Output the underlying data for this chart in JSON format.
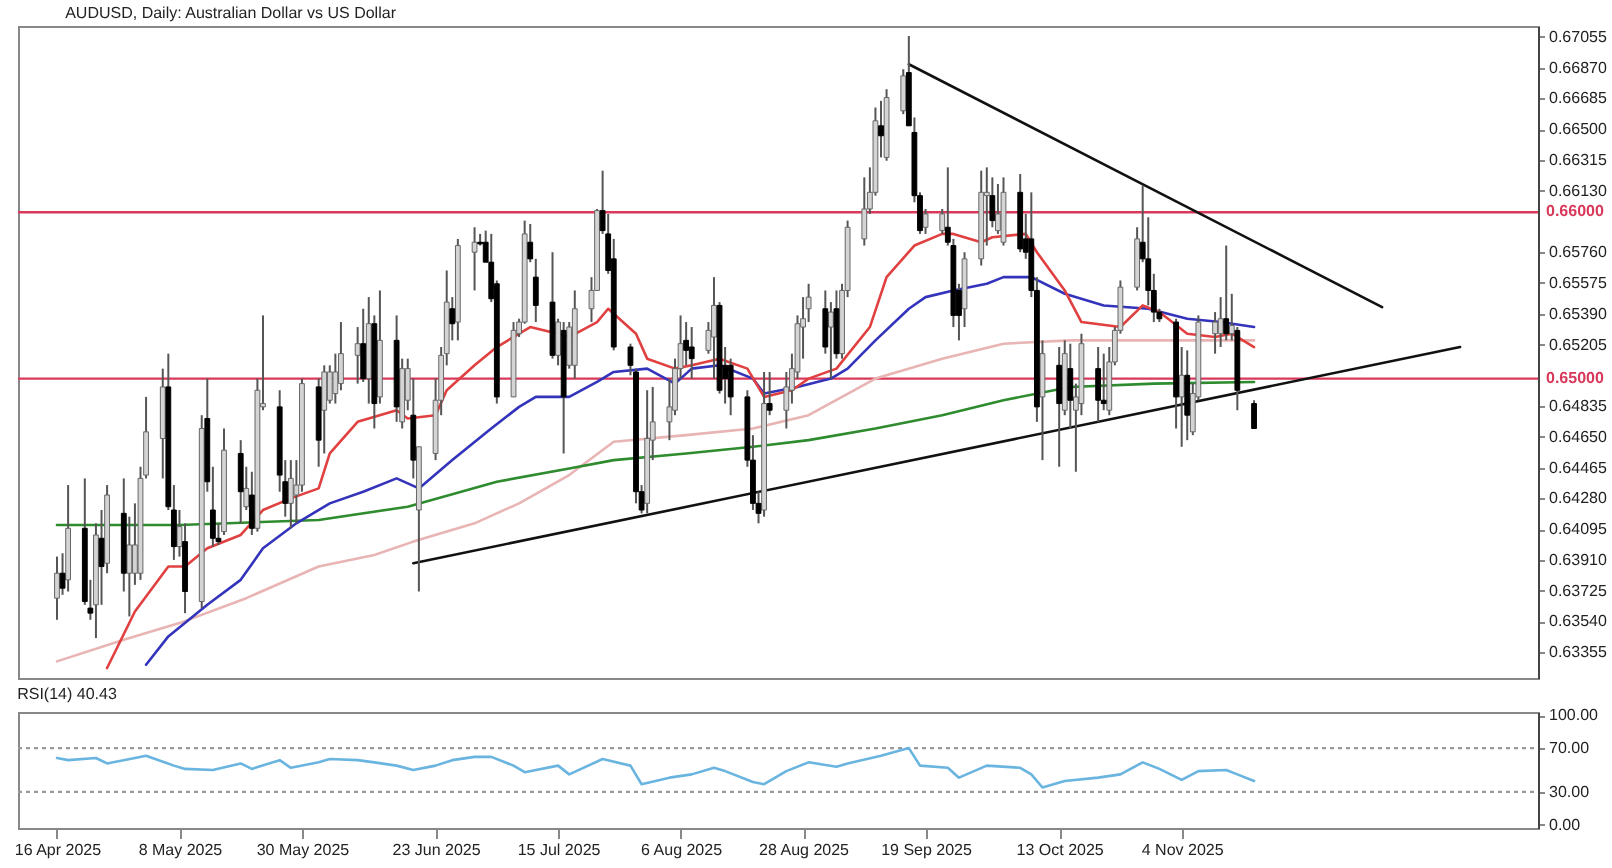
{
  "chart_data": [
    {
      "type": "candlestick",
      "title": "AUDUSD, Daily:  Australian Dollar vs US Dollar",
      "tick_labels": "y",
      "xlim": [
        "2025-04-09",
        "2026-01-07"
      ],
      "ylim": [
        0.632,
        0.6712
      ],
      "yticks": [
        {
          "value": 0.67055,
          "label": "0.67055"
        },
        {
          "value": 0.6687,
          "label": "0.66870"
        },
        {
          "value": 0.66685,
          "label": "0.66685"
        },
        {
          "value": 0.665,
          "label": "0.66500"
        },
        {
          "value": 0.66315,
          "label": "0.66315"
        },
        {
          "value": 0.6613,
          "label": "0.66130"
        },
        {
          "value": 0.6576,
          "label": "0.65760"
        },
        {
          "value": 0.65575,
          "label": "0.65575"
        },
        {
          "value": 0.6539,
          "label": "0.65390"
        },
        {
          "value": 0.65205,
          "label": "0.65205"
        },
        {
          "value": 0.64835,
          "label": "0.64835"
        },
        {
          "value": 0.6465,
          "label": "0.64650"
        },
        {
          "value": 0.64465,
          "label": "0.64465"
        },
        {
          "value": 0.6428,
          "label": "0.64280"
        },
        {
          "value": 0.64095,
          "label": "0.64095"
        },
        {
          "value": 0.6391,
          "label": "0.63910"
        },
        {
          "value": 0.63725,
          "label": "0.63725"
        },
        {
          "value": 0.6354,
          "label": "0.63540"
        },
        {
          "value": 0.63355,
          "label": "0.63355"
        }
      ],
      "ref_lines": [
        {
          "axis": "y",
          "value": 0.66,
          "label": "0.66000",
          "color": "#d8395a"
        },
        {
          "axis": "y",
          "value": 0.65,
          "label": "0.65000",
          "color": "#d8395a"
        }
      ],
      "x": [
        "2025-04-16",
        "2025-04-17",
        "2025-04-18",
        "2025-04-21",
        "2025-04-22",
        "2025-04-23",
        "2025-04-24",
        "2025-04-25",
        "2025-04-28",
        "2025-04-29",
        "2025-04-30",
        "2025-05-01",
        "2025-05-02",
        "2025-05-05",
        "2025-05-06",
        "2025-05-07",
        "2025-05-08",
        "2025-05-09",
        "2025-05-12",
        "2025-05-13",
        "2025-05-14",
        "2025-05-15",
        "2025-05-16",
        "2025-05-19",
        "2025-05-20",
        "2025-05-21",
        "2025-05-22",
        "2025-05-23",
        "2025-05-26",
        "2025-05-27",
        "2025-05-28",
        "2025-05-29",
        "2025-05-30",
        "2025-06-02",
        "2025-06-03",
        "2025-06-04",
        "2025-06-05",
        "2025-06-06",
        "2025-06-09",
        "2025-06-10",
        "2025-06-11",
        "2025-06-12",
        "2025-06-13",
        "2025-06-16",
        "2025-06-17",
        "2025-06-18",
        "2025-06-19",
        "2025-06-20",
        "2025-06-23",
        "2025-06-24",
        "2025-06-25",
        "2025-06-26",
        "2025-06-27",
        "2025-06-30",
        "2025-07-01",
        "2025-07-02",
        "2025-07-03",
        "2025-07-04",
        "2025-07-07",
        "2025-07-08",
        "2025-07-09",
        "2025-07-10",
        "2025-07-11",
        "2025-07-14",
        "2025-07-15",
        "2025-07-16",
        "2025-07-17",
        "2025-07-18",
        "2025-07-21",
        "2025-07-22",
        "2025-07-23",
        "2025-07-24",
        "2025-07-25",
        "2025-07-28",
        "2025-07-29",
        "2025-07-30",
        "2025-07-31",
        "2025-08-01",
        "2025-08-04",
        "2025-08-05",
        "2025-08-06",
        "2025-08-07",
        "2025-08-08",
        "2025-08-11",
        "2025-08-12",
        "2025-08-13",
        "2025-08-14",
        "2025-08-15",
        "2025-08-18",
        "2025-08-19",
        "2025-08-20",
        "2025-08-21",
        "2025-08-22",
        "2025-08-25",
        "2025-08-26",
        "2025-08-27",
        "2025-08-28",
        "2025-08-29",
        "2025-09-01",
        "2025-09-02",
        "2025-09-03",
        "2025-09-04",
        "2025-09-05",
        "2025-09-08",
        "2025-09-09",
        "2025-09-10",
        "2025-09-11",
        "2025-09-12",
        "2025-09-15",
        "2025-09-16",
        "2025-09-17",
        "2025-09-18",
        "2025-09-19",
        "2025-09-22",
        "2025-09-23",
        "2025-09-24",
        "2025-09-25",
        "2025-09-26",
        "2025-09-29",
        "2025-09-30",
        "2025-10-01",
        "2025-10-02",
        "2025-10-03",
        "2025-10-06",
        "2025-10-07",
        "2025-10-08",
        "2025-10-09",
        "2025-10-10",
        "2025-10-13",
        "2025-10-14",
        "2025-10-15",
        "2025-10-16",
        "2025-10-17",
        "2025-10-20",
        "2025-10-21",
        "2025-10-22",
        "2025-10-23",
        "2025-10-24",
        "2025-10-27",
        "2025-10-28",
        "2025-10-29",
        "2025-10-30",
        "2025-10-31",
        "2025-11-03",
        "2025-11-04",
        "2025-11-05",
        "2025-11-06",
        "2025-11-07",
        "2025-11-10",
        "2025-11-11",
        "2025-11-12",
        "2025-11-13",
        "2025-11-14",
        "2025-11-17"
      ],
      "ohlc": [
        [
          0.6368,
          0.6393,
          0.6355,
          0.6383
        ],
        [
          0.6383,
          0.6395,
          0.637,
          0.6374
        ],
        [
          0.6379,
          0.6436,
          0.6372,
          0.641
        ],
        [
          0.641,
          0.644,
          0.6364,
          0.6366
        ],
        [
          0.6362,
          0.6379,
          0.6355,
          0.6359
        ],
        [
          0.6364,
          0.6413,
          0.6344,
          0.6406
        ],
        [
          0.6404,
          0.6421,
          0.6364,
          0.6387
        ],
        [
          0.6389,
          0.6436,
          0.6383,
          0.643
        ],
        [
          0.6419,
          0.644,
          0.6372,
          0.6383
        ],
        [
          0.6383,
          0.6417,
          0.6357,
          0.64
        ],
        [
          0.6383,
          0.6425,
          0.6376,
          0.64
        ],
        [
          0.6383,
          0.6447,
          0.6379,
          0.644
        ],
        [
          0.6442,
          0.6489,
          0.644,
          0.6468
        ],
        [
          0.6464,
          0.6506,
          0.644,
          0.6495
        ],
        [
          0.6495,
          0.6515,
          0.6421,
          0.6423
        ],
        [
          0.6421,
          0.6436,
          0.6391,
          0.6399
        ],
        [
          0.6399,
          0.6421,
          0.6393,
          0.6411
        ],
        [
          0.6402,
          0.6413,
          0.6359,
          0.6372
        ],
        [
          0.6366,
          0.6478,
          0.6362,
          0.647
        ],
        [
          0.6476,
          0.65,
          0.6432,
          0.6438
        ],
        [
          0.6421,
          0.6447,
          0.6399,
          0.6404
        ],
        [
          0.6404,
          0.6413,
          0.64,
          0.6402
        ],
        [
          0.6408,
          0.647,
          0.6406,
          0.6457
        ],
        [
          0.6455,
          0.6463,
          0.6413,
          0.6432
        ],
        [
          0.6423,
          0.6447,
          0.6421,
          0.6434
        ],
        [
          0.643,
          0.6444,
          0.6406,
          0.641
        ],
        [
          0.641,
          0.65,
          0.6408,
          0.6493
        ],
        [
          0.6483,
          0.6538,
          0.6481,
          0.6485
        ],
        [
          0.6483,
          0.6493,
          0.6432,
          0.6442
        ],
        [
          0.6438,
          0.6451,
          0.6417,
          0.6425
        ],
        [
          0.6425,
          0.6451,
          0.641,
          0.644
        ],
        [
          0.643,
          0.6451,
          0.6413,
          0.6436
        ],
        [
          0.6436,
          0.65,
          0.6432,
          0.6497
        ],
        [
          0.6495,
          0.65,
          0.6447,
          0.6463
        ],
        [
          0.6481,
          0.6508,
          0.6455,
          0.6504
        ],
        [
          0.6487,
          0.6508,
          0.6485,
          0.6504
        ],
        [
          0.6491,
          0.6515,
          0.6485,
          0.6504
        ],
        [
          0.6497,
          0.6534,
          0.6493,
          0.6515
        ],
        [
          0.6514,
          0.6531,
          0.6497,
          0.6521
        ],
        [
          0.6521,
          0.6542,
          0.6498,
          0.65
        ],
        [
          0.65,
          0.6549,
          0.6485,
          0.6533
        ],
        [
          0.6533,
          0.6538,
          0.647,
          0.6485
        ],
        [
          0.6489,
          0.6553,
          0.6485,
          0.6523
        ],
        [
          0.6523,
          0.6538,
          0.6474,
          0.6483
        ],
        [
          0.6474,
          0.6512,
          0.647,
          0.6506
        ],
        [
          0.6487,
          0.6512,
          0.6481,
          0.6506
        ],
        [
          0.6478,
          0.65,
          0.644,
          0.6451
        ],
        [
          0.6421,
          0.6459,
          0.6372,
          0.6459
        ],
        [
          0.6455,
          0.65,
          0.6451,
          0.6487
        ],
        [
          0.6487,
          0.6519,
          0.6478,
          0.6514
        ],
        [
          0.6515,
          0.6565,
          0.6508,
          0.6546
        ],
        [
          0.6542,
          0.6549,
          0.6523,
          0.6533
        ],
        [
          0.6534,
          0.6584,
          0.6523,
          0.658
        ],
        [
          0.6576,
          0.6591,
          0.6553,
          0.6582
        ],
        [
          0.6582,
          0.6587,
          0.658,
          0.6581
        ],
        [
          0.6582,
          0.6589,
          0.657,
          0.657
        ],
        [
          0.657,
          0.6587,
          0.6546,
          0.6548
        ],
        [
          0.6557,
          0.6559,
          0.6485,
          0.6489
        ],
        [
          0.6489,
          0.6534,
          0.6489,
          0.6529
        ],
        [
          0.6527,
          0.6536,
          0.6525,
          0.6534
        ],
        [
          0.6534,
          0.6595,
          0.6533,
          0.6587
        ],
        [
          0.6582,
          0.6593,
          0.657,
          0.6572
        ],
        [
          0.6561,
          0.6572,
          0.6534,
          0.6544
        ],
        [
          0.6546,
          0.6576,
          0.6512,
          0.6514
        ],
        [
          0.6514,
          0.6536,
          0.6508,
          0.6534
        ],
        [
          0.6529,
          0.6534,
          0.6455,
          0.6489
        ],
        [
          0.6508,
          0.6534,
          0.6506,
          0.6531
        ],
        [
          0.6508,
          0.6553,
          0.65,
          0.6542
        ],
        [
          0.6542,
          0.6561,
          0.6534,
          0.6553
        ],
        [
          0.6553,
          0.6602,
          0.6553,
          0.6601
        ],
        [
          0.6601,
          0.6625,
          0.6587,
          0.6589
        ],
        [
          0.6587,
          0.6599,
          0.6563,
          0.6565
        ],
        [
          0.6572,
          0.6584,
          0.6517,
          0.6519
        ],
        [
          0.6519,
          0.6521,
          0.6502,
          0.6508
        ],
        [
          0.6504,
          0.6506,
          0.6425,
          0.6432
        ],
        [
          0.6432,
          0.6436,
          0.6419,
          0.6421
        ],
        [
          0.6425,
          0.6493,
          0.6419,
          0.6464
        ],
        [
          0.6463,
          0.6495,
          0.6451,
          0.6474
        ],
        [
          0.6474,
          0.65,
          0.6463,
          0.6483
        ],
        [
          0.6481,
          0.6512,
          0.6478,
          0.6506
        ],
        [
          0.6506,
          0.6538,
          0.65,
          0.6521
        ],
        [
          0.6523,
          0.6534,
          0.6508,
          0.6517
        ],
        [
          0.6519,
          0.6531,
          0.65,
          0.6512
        ],
        [
          0.6517,
          0.6534,
          0.6515,
          0.6529
        ],
        [
          0.6525,
          0.6561,
          0.65,
          0.6544
        ],
        [
          0.6544,
          0.6546,
          0.6491,
          0.6493
        ],
        [
          0.6508,
          0.6519,
          0.6485,
          0.65
        ],
        [
          0.6508,
          0.6512,
          0.6478,
          0.6489
        ],
        [
          0.6489,
          0.6493,
          0.6447,
          0.6451
        ],
        [
          0.6451,
          0.6466,
          0.6421,
          0.6425
        ],
        [
          0.6425,
          0.6432,
          0.6413,
          0.6419
        ],
        [
          0.6421,
          0.6504,
          0.6417,
          0.6485
        ],
        [
          0.6485,
          0.6504,
          0.6478,
          0.6481
        ],
        [
          0.6481,
          0.6504,
          0.647,
          0.6495
        ],
        [
          0.6493,
          0.6515,
          0.6485,
          0.6506
        ],
        [
          0.6504,
          0.6538,
          0.65,
          0.6533
        ],
        [
          0.6531,
          0.6549,
          0.6512,
          0.6536
        ],
        [
          0.6542,
          0.6557,
          0.6534,
          0.6549
        ],
        [
          0.6542,
          0.6553,
          0.6515,
          0.6519
        ],
        [
          0.6531,
          0.6546,
          0.65,
          0.654
        ],
        [
          0.6542,
          0.6553,
          0.6512,
          0.6515
        ],
        [
          0.6515,
          0.6557,
          0.6512,
          0.6553
        ],
        [
          0.6553,
          0.6595,
          0.6549,
          0.6591
        ],
        [
          0.6584,
          0.6621,
          0.658,
          0.6602
        ],
        [
          0.6602,
          0.6627,
          0.6599,
          0.6612
        ],
        [
          0.6612,
          0.6663,
          0.661,
          0.6655
        ],
        [
          0.6652,
          0.6667,
          0.6633,
          0.6646
        ],
        [
          0.6633,
          0.6674,
          0.6631,
          0.6669
        ],
        [
          0.6661,
          0.6686,
          0.6659,
          0.6682
        ],
        [
          0.6684,
          0.6706,
          0.6652,
          0.6652
        ],
        [
          0.6648,
          0.6657,
          0.6606,
          0.661
        ],
        [
          0.661,
          0.6612,
          0.6587,
          0.6589
        ],
        [
          0.6591,
          0.6602,
          0.6587,
          0.6599
        ],
        [
          0.6589,
          0.6602,
          0.6587,
          0.6599
        ],
        [
          0.6591,
          0.6627,
          0.658,
          0.6582
        ],
        [
          0.658,
          0.6584,
          0.6531,
          0.6538
        ],
        [
          0.6553,
          0.6557,
          0.6523,
          0.6538
        ],
        [
          0.6542,
          0.6576,
          0.6531,
          0.6572
        ],
        [
          0.6572,
          0.6625,
          0.6568,
          0.6612
        ],
        [
          0.661,
          0.6627,
          0.658,
          0.6612
        ],
        [
          0.661,
          0.6621,
          0.6591,
          0.6595
        ],
        [
          0.6589,
          0.6617,
          0.6587,
          0.6599
        ],
        [
          0.6582,
          0.6621,
          0.658,
          0.6612
        ],
        [
          0.6612,
          0.6623,
          0.6576,
          0.6578
        ],
        [
          0.6584,
          0.6599,
          0.6572,
          0.6576
        ],
        [
          0.6584,
          0.6612,
          0.6549,
          0.6553
        ],
        [
          0.6553,
          0.6561,
          0.6474,
          0.6483
        ],
        [
          0.6489,
          0.6523,
          0.6451,
          0.6515
        ],
        [
          0.6508,
          0.6519,
          0.6447,
          0.6485
        ],
        [
          0.6481,
          0.6523,
          0.6478,
          0.6515
        ],
        [
          0.6506,
          0.6521,
          0.647,
          0.6487
        ],
        [
          0.6481,
          0.6497,
          0.6444,
          0.6489
        ],
        [
          0.6485,
          0.6527,
          0.6478,
          0.6521
        ],
        [
          0.6506,
          0.6519,
          0.6474,
          0.6487
        ],
        [
          0.6487,
          0.6515,
          0.6481,
          0.6485
        ],
        [
          0.6481,
          0.6519,
          0.6478,
          0.651
        ],
        [
          0.651,
          0.6531,
          0.6508,
          0.6529
        ],
        [
          0.6529,
          0.6559,
          0.6527,
          0.6555
        ],
        [
          0.6555,
          0.6591,
          0.6553,
          0.6584
        ],
        [
          0.6582,
          0.6616,
          0.657,
          0.6572
        ],
        [
          0.6572,
          0.6597,
          0.6544,
          0.6553
        ],
        [
          0.6553,
          0.6563,
          0.6534,
          0.654
        ],
        [
          0.654,
          0.6542,
          0.6534,
          0.6536
        ],
        [
          0.6534,
          0.6536,
          0.647,
          0.6489
        ],
        [
          0.6489,
          0.6519,
          0.6459,
          0.6502
        ],
        [
          0.6502,
          0.6517,
          0.6463,
          0.6478
        ],
        [
          0.6468,
          0.6497,
          0.6466,
          0.6491
        ],
        [
          0.6489,
          0.6538,
          0.6487,
          0.6534
        ],
        [
          0.6527,
          0.654,
          0.6515,
          0.6534
        ],
        [
          0.6527,
          0.6549,
          0.6519,
          0.6536
        ],
        [
          0.6536,
          0.658,
          0.6523,
          0.6527
        ],
        [
          0.6527,
          0.6551,
          0.6523,
          0.6532
        ],
        [
          0.6529,
          0.6531,
          0.6481,
          0.6493
        ],
        [
          0.6485,
          0.6487,
          0.647,
          0.647
        ]
      ],
      "series": [
        {
          "type": "line",
          "color": "#e8b4b4",
          "x": [
            "2025-04-16",
            "2025-04-28",
            "2025-05-08",
            "2025-05-20",
            "2025-06-02",
            "2025-06-12",
            "2025-06-19",
            "2025-06-30",
            "2025-07-08",
            "2025-07-17",
            "2025-07-25",
            "2025-08-07",
            "2025-08-19",
            "2025-08-29",
            "2025-09-10",
            "2025-09-22",
            "2025-10-03",
            "2025-10-15",
            "2025-10-30",
            "2025-11-17"
          ],
          "values": [
            0.633,
            0.6343,
            0.6353,
            0.6368,
            0.6387,
            0.6394,
            0.6402,
            0.6413,
            0.6425,
            0.6442,
            0.6462,
            0.6466,
            0.647,
            0.6478,
            0.65,
            0.6512,
            0.6521,
            0.6523,
            0.6523,
            0.6523
          ]
        },
        {
          "type": "line",
          "color": "#2e8b2e",
          "x": [
            "2025-04-16",
            "2025-05-08",
            "2025-06-02",
            "2025-06-18",
            "2025-07-04",
            "2025-07-17",
            "2025-07-25",
            "2025-08-07",
            "2025-08-19",
            "2025-08-29",
            "2025-09-10",
            "2025-09-22",
            "2025-10-03",
            "2025-10-15",
            "2025-10-30",
            "2025-11-17"
          ],
          "values": [
            0.6412,
            0.6412,
            0.6415,
            0.6423,
            0.6438,
            0.6446,
            0.6451,
            0.6455,
            0.6459,
            0.6463,
            0.647,
            0.6478,
            0.6487,
            0.6495,
            0.6497,
            0.6498
          ]
        },
        {
          "type": "line",
          "color": "#3333bb",
          "x": [
            "2025-05-02",
            "2025-05-06",
            "2025-05-13",
            "2025-05-19",
            "2025-05-23",
            "2025-05-29",
            "2025-06-04",
            "2025-06-10",
            "2025-06-16",
            "2025-06-20",
            "2025-06-26",
            "2025-07-03",
            "2025-07-08",
            "2025-07-11",
            "2025-07-17",
            "2025-07-22",
            "2025-07-25",
            "2025-07-31",
            "2025-08-05",
            "2025-08-08",
            "2025-08-13",
            "2025-08-19",
            "2025-08-21",
            "2025-08-27",
            "2025-09-02",
            "2025-09-05",
            "2025-09-10",
            "2025-09-16",
            "2025-09-19",
            "2025-09-24",
            "2025-09-30",
            "2025-10-03",
            "2025-10-08",
            "2025-10-14",
            "2025-10-21",
            "2025-10-29",
            "2025-11-05",
            "2025-11-11",
            "2025-11-17"
          ],
          "values": [
            0.6328,
            0.6345,
            0.6364,
            0.6379,
            0.6398,
            0.6413,
            0.6425,
            0.6432,
            0.644,
            0.6434,
            0.6451,
            0.647,
            0.6483,
            0.6489,
            0.6489,
            0.6498,
            0.6504,
            0.6506,
            0.6497,
            0.6506,
            0.6508,
            0.65,
            0.6491,
            0.6495,
            0.65,
            0.6506,
            0.6523,
            0.6542,
            0.6549,
            0.6553,
            0.6557,
            0.6561,
            0.6561,
            0.6551,
            0.6544,
            0.6542,
            0.6536,
            0.6534,
            0.6531
          ]
        },
        {
          "type": "line",
          "color": "#e04040",
          "x": [
            "2025-04-25",
            "2025-04-30",
            "2025-05-06",
            "2025-05-09",
            "2025-05-13",
            "2025-05-19",
            "2025-05-23",
            "2025-05-28",
            "2025-06-02",
            "2025-06-04",
            "2025-06-09",
            "2025-06-16",
            "2025-06-18",
            "2025-06-23",
            "2025-06-25",
            "2025-06-30",
            "2025-07-04",
            "2025-07-10",
            "2025-07-15",
            "2025-07-17",
            "2025-07-22",
            "2025-07-24",
            "2025-07-29",
            "2025-07-31",
            "2025-08-05",
            "2025-08-08",
            "2025-08-13",
            "2025-08-18",
            "2025-08-21",
            "2025-08-26",
            "2025-08-29",
            "2025-09-03",
            "2025-09-09",
            "2025-09-12",
            "2025-09-17",
            "2025-09-22",
            "2025-09-24",
            "2025-09-29",
            "2025-10-01",
            "2025-10-07",
            "2025-10-09",
            "2025-10-14",
            "2025-10-17",
            "2025-10-24",
            "2025-10-28",
            "2025-10-31",
            "2025-11-05",
            "2025-11-10",
            "2025-11-13",
            "2025-11-17"
          ],
          "values": [
            0.6326,
            0.636,
            0.6387,
            0.6387,
            0.6398,
            0.6406,
            0.6421,
            0.6428,
            0.6434,
            0.6455,
            0.6474,
            0.6481,
            0.6476,
            0.6478,
            0.6493,
            0.6508,
            0.6519,
            0.6531,
            0.6527,
            0.6525,
            0.6534,
            0.6542,
            0.6527,
            0.6512,
            0.6506,
            0.6508,
            0.6512,
            0.6506,
            0.6489,
            0.6493,
            0.65,
            0.6506,
            0.6531,
            0.6561,
            0.658,
            0.6587,
            0.6587,
            0.6582,
            0.6585,
            0.6587,
            0.6576,
            0.6553,
            0.6534,
            0.6531,
            0.6544,
            0.654,
            0.6527,
            0.6525,
            0.6527,
            0.6519
          ]
        },
        {
          "type": "line",
          "color": "#111111",
          "x": [
            "2025-09-16",
            "2025-12-10"
          ],
          "values": [
            0.6689,
            0.6543
          ]
        },
        {
          "type": "line",
          "color": "#111111",
          "x": [
            "2025-06-19",
            "2025-12-24"
          ],
          "values": [
            0.6389,
            0.6519
          ]
        }
      ]
    },
    {
      "type": "line",
      "title": "RSI(14) 40.43",
      "xlim": [
        "2025-04-09",
        "2026-01-07"
      ],
      "xticks": [
        {
          "value": "2025-04-16",
          "label": "16 Apr 2025"
        },
        {
          "value": "2025-05-08",
          "label": "8 May 2025"
        },
        {
          "value": "2025-05-30",
          "label": "30 May 2025"
        },
        {
          "value": "2025-06-23",
          "label": "23 Jun 2025"
        },
        {
          "value": "2025-07-15",
          "label": "15 Jul 2025"
        },
        {
          "value": "2025-08-06",
          "label": "6 Aug 2025"
        },
        {
          "value": "2025-08-28",
          "label": "28 Aug 2025"
        },
        {
          "value": "2025-09-19",
          "label": "19 Sep 2025"
        },
        {
          "value": "2025-10-13",
          "label": "13 Oct 2025"
        },
        {
          "value": "2025-11-04",
          "label": "4 Nov 2025"
        }
      ],
      "ylim": [
        -3,
        103
      ],
      "yticks": [
        {
          "value": 0,
          "label": "0.00"
        },
        {
          "value": 30,
          "label": "30.00"
        },
        {
          "value": 70,
          "label": "70.00"
        },
        {
          "value": 100,
          "label": "100.00"
        }
      ],
      "ref_lines": [
        {
          "axis": "y",
          "value": 30,
          "color": "#999999",
          "line_style": "dotted"
        },
        {
          "axis": "y",
          "value": 70,
          "color": "#999999",
          "line_style": "dotted"
        }
      ],
      "series": [
        {
          "color": "#6ab4e0",
          "x": [
            "2025-04-16",
            "2025-04-18",
            "2025-04-23",
            "2025-04-25",
            "2025-04-30",
            "2025-05-02",
            "2025-05-07",
            "2025-05-09",
            "2025-05-14",
            "2025-05-19",
            "2025-05-21",
            "2025-05-26",
            "2025-05-28",
            "2025-06-02",
            "2025-06-04",
            "2025-06-09",
            "2025-06-12",
            "2025-06-16",
            "2025-06-19",
            "2025-06-23",
            "2025-06-26",
            "2025-06-30",
            "2025-07-03",
            "2025-07-07",
            "2025-07-09",
            "2025-07-15",
            "2025-07-17",
            "2025-07-23",
            "2025-07-28",
            "2025-07-30",
            "2025-08-04",
            "2025-08-08",
            "2025-08-12",
            "2025-08-14",
            "2025-08-19",
            "2025-08-21",
            "2025-08-25",
            "2025-08-29",
            "2025-09-03",
            "2025-09-05",
            "2025-09-11",
            "2025-09-16",
            "2025-09-18",
            "2025-09-23",
            "2025-09-25",
            "2025-09-30",
            "2025-10-06",
            "2025-10-08",
            "2025-10-10",
            "2025-10-14",
            "2025-10-20",
            "2025-10-24",
            "2025-10-28",
            "2025-10-31",
            "2025-11-04",
            "2025-11-07",
            "2025-11-12",
            "2025-11-14",
            "2025-11-17"
          ],
          "values": [
            61,
            59,
            61,
            56,
            61,
            63,
            54,
            51,
            50,
            56,
            51,
            59,
            52,
            57,
            60,
            59,
            57,
            54,
            50,
            54,
            59,
            62,
            62,
            54,
            48,
            54,
            46,
            60,
            54,
            37,
            43,
            46,
            52,
            49,
            39,
            37,
            49,
            57,
            53,
            56,
            63,
            70,
            54,
            52,
            43,
            54,
            52,
            46,
            34,
            40,
            43,
            46,
            57,
            51,
            41,
            49,
            50,
            46,
            40
          ]
        }
      ]
    }
  ]
}
